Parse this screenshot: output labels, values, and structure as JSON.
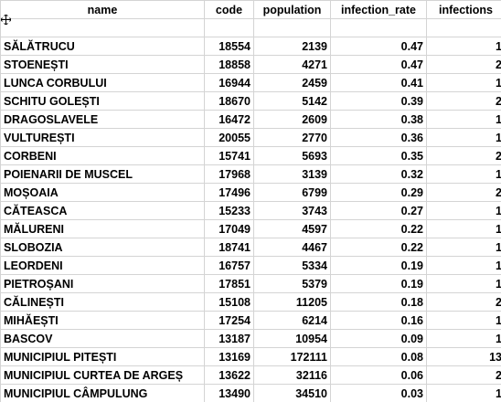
{
  "headers": {
    "name": "name",
    "code": "code",
    "population": "population",
    "infection_rate": "infection_rate",
    "infections": "infections"
  },
  "rows": [
    {
      "name": "SĂLĂTRUCU",
      "code": "18554",
      "population": "2139",
      "infection_rate": "0.47",
      "infections": "1"
    },
    {
      "name": "STOENEȘTI",
      "code": "18858",
      "population": "4271",
      "infection_rate": "0.47",
      "infections": "2"
    },
    {
      "name": "LUNCA CORBULUI",
      "code": "16944",
      "population": "2459",
      "infection_rate": "0.41",
      "infections": "1"
    },
    {
      "name": "SCHITU GOLEȘTI",
      "code": "18670",
      "population": "5142",
      "infection_rate": "0.39",
      "infections": "2"
    },
    {
      "name": "DRAGOSLAVELE",
      "code": "16472",
      "population": "2609",
      "infection_rate": "0.38",
      "infections": "1"
    },
    {
      "name": "VULTUREȘTI",
      "code": "20055",
      "population": "2770",
      "infection_rate": "0.36",
      "infections": "1"
    },
    {
      "name": "CORBENI",
      "code": "15741",
      "population": "5693",
      "infection_rate": "0.35",
      "infections": "2"
    },
    {
      "name": "POIENARII DE MUSCEL",
      "code": "17968",
      "population": "3139",
      "infection_rate": "0.32",
      "infections": "1"
    },
    {
      "name": "MOȘOAIA",
      "code": "17496",
      "population": "6799",
      "infection_rate": "0.29",
      "infections": "2"
    },
    {
      "name": "CĂTEASCA",
      "code": "15233",
      "population": "3743",
      "infection_rate": "0.27",
      "infections": "1"
    },
    {
      "name": "MĂLURENI",
      "code": "17049",
      "population": "4597",
      "infection_rate": "0.22",
      "infections": "1"
    },
    {
      "name": "SLOBOZIA",
      "code": "18741",
      "population": "4467",
      "infection_rate": "0.22",
      "infections": "1"
    },
    {
      "name": "LEORDENI",
      "code": "16757",
      "population": "5334",
      "infection_rate": "0.19",
      "infections": "1"
    },
    {
      "name": "PIETROȘANI",
      "code": "17851",
      "population": "5379",
      "infection_rate": "0.19",
      "infections": "1"
    },
    {
      "name": "CĂLINEȘTI",
      "code": "15108",
      "population": "11205",
      "infection_rate": "0.18",
      "infections": "2"
    },
    {
      "name": "MIHĂEȘTI",
      "code": "17254",
      "population": "6214",
      "infection_rate": "0.16",
      "infections": "1"
    },
    {
      "name": "BASCOV",
      "code": "13187",
      "population": "10954",
      "infection_rate": "0.09",
      "infections": "1"
    },
    {
      "name": "MUNICIPIUL PITEȘTI",
      "code": "13169",
      "population": "172111",
      "infection_rate": "0.08",
      "infections": "13"
    },
    {
      "name": "MUNICIPIUL CURTEA DE ARGEȘ",
      "code": "13622",
      "population": "32116",
      "infection_rate": "0.06",
      "infections": "2"
    },
    {
      "name": "MUNICIPIUL CÂMPULUNG",
      "code": "13490",
      "population": "34510",
      "infection_rate": "0.03",
      "infections": "1"
    }
  ]
}
